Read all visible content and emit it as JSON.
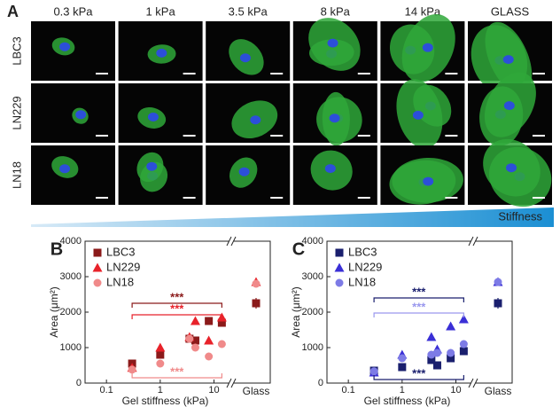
{
  "panel_a": {
    "label": "A",
    "columns": [
      "0.3 kPa",
      "1 kPa",
      "3.5 kPa",
      "8 kPa",
      "14 kPa",
      "GLASS"
    ],
    "rows": [
      "LBC3",
      "LN229",
      "LN18"
    ],
    "gradient_label": "Stiffness"
  },
  "chart_data": [
    {
      "type": "scatter",
      "panel": "B",
      "x_label": "Gel stiffness (kPa)",
      "y_label": "Area (μm²)",
      "log_x": true,
      "xlim": [
        0.04,
        18
      ],
      "xticks": [
        0.1,
        1,
        10
      ],
      "ylim": [
        0,
        4000
      ],
      "yticks": [
        0,
        1000,
        2000,
        3000,
        4000
      ],
      "break_label": "Glass",
      "legend": "upper left",
      "x": [
        0.3,
        1,
        3.5,
        4.5,
        8,
        14
      ],
      "series": [
        {
          "name": "LBC3",
          "color": "#8b1a1a",
          "marker": "square",
          "values": [
            550,
            800,
            1250,
            1200,
            1750,
            1700
          ],
          "glass_value": 2250,
          "glass_error": 150
        },
        {
          "name": "LN229",
          "color": "#e8222a",
          "marker": "triangle",
          "values": [
            430,
            1000,
            1300,
            1750,
            1200,
            1850
          ],
          "glass_value": 2850,
          "glass_error": 50
        },
        {
          "name": "LN18",
          "color": "#f08a8a",
          "marker": "circle",
          "values": [
            380,
            550,
            1250,
            1000,
            750,
            1100
          ],
          "glass_value": 2800,
          "glass_error": 50
        }
      ],
      "significance": [
        {
          "label": "***",
          "color": "#8b1a1a",
          "from": 0.3,
          "to": 14,
          "level": 2250
        },
        {
          "label": "***",
          "color": "#e8222a",
          "from": 0.3,
          "to": 14,
          "level": 1925
        },
        {
          "label": "***",
          "color": "#f08a8a",
          "from": 0.3,
          "to": 14,
          "level": 150
        }
      ]
    },
    {
      "type": "scatter",
      "panel": "C",
      "x_label": "Gel stiffness (kPa)",
      "y_label": "Area (μm²)",
      "log_x": true,
      "xlim": [
        0.04,
        18
      ],
      "xticks": [
        0.1,
        1,
        10
      ],
      "ylim": [
        0,
        4000
      ],
      "yticks": [
        0,
        1000,
        2000,
        3000,
        4000
      ],
      "break_label": "Glass",
      "legend": "upper left",
      "x": [
        0.3,
        1,
        3.5,
        4.5,
        8,
        14
      ],
      "series": [
        {
          "name": "LBC3",
          "color": "#1a1f6e",
          "marker": "square",
          "values": [
            350,
            450,
            650,
            500,
            700,
            900
          ],
          "glass_value": 2250,
          "glass_error": 150
        },
        {
          "name": "LN229",
          "color": "#3a2fd6",
          "marker": "triangle",
          "values": [
            300,
            800,
            1300,
            950,
            1600,
            1800
          ],
          "glass_value": 2850,
          "glass_error": 50
        },
        {
          "name": "LN18",
          "color": "#7d7be6",
          "marker": "circle",
          "values": [
            330,
            700,
            800,
            850,
            850,
            1100
          ],
          "glass_value": 2850,
          "glass_error": 50
        }
      ],
      "significance": [
        {
          "label": "***",
          "color": "#1a1f6e",
          "from": 0.3,
          "to": 14,
          "level": 2400
        },
        {
          "label": "***",
          "color": "#9a98ee",
          "from": 0.3,
          "to": 14,
          "level": 1975
        },
        {
          "label": "***",
          "color": "#1a1f6e",
          "from": 0.3,
          "to": 14,
          "level": 100
        }
      ]
    }
  ]
}
